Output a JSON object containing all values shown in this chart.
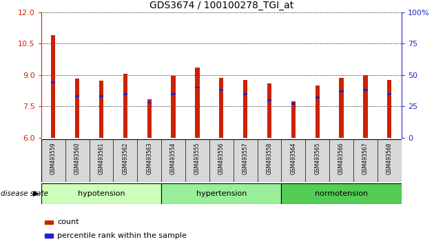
{
  "title": "GDS3674 / 100100278_TGI_at",
  "samples": [
    "GSM493559",
    "GSM493560",
    "GSM493561",
    "GSM493562",
    "GSM493563",
    "GSM493554",
    "GSM493555",
    "GSM493556",
    "GSM493557",
    "GSM493558",
    "GSM493564",
    "GSM493565",
    "GSM493566",
    "GSM493567",
    "GSM493568"
  ],
  "count_values": [
    10.9,
    8.82,
    8.72,
    9.05,
    7.83,
    8.95,
    9.35,
    8.85,
    8.75,
    8.6,
    7.75,
    8.5,
    8.85,
    9.0,
    8.75
  ],
  "percentile_values": [
    44,
    33,
    33,
    35,
    28,
    35,
    40,
    38,
    35,
    30,
    27,
    32,
    37,
    38,
    35
  ],
  "ylim_left": [
    6,
    12
  ],
  "ylim_right": [
    0,
    100
  ],
  "yticks_left": [
    6,
    7.5,
    9,
    10.5,
    12
  ],
  "yticks_right": [
    0,
    25,
    50,
    75,
    100
  ],
  "groups": [
    {
      "label": "hypotension",
      "start": 0,
      "end": 5
    },
    {
      "label": "hypertension",
      "start": 5,
      "end": 10
    },
    {
      "label": "normotension",
      "start": 10,
      "end": 15
    }
  ],
  "group_colors": [
    "#ccffbb",
    "#99ee99",
    "#55cc55"
  ],
  "bar_color_red": "#cc2200",
  "bar_color_blue": "#2222cc",
  "red_bar_width": 0.18,
  "blue_bar_width": 0.18,
  "legend_count_label": "count",
  "legend_percentile_label": "percentile rank within the sample",
  "disease_state_label": "disease state",
  "title_fontsize": 10,
  "axis_label_color_left": "#cc2200",
  "axis_label_color_right": "#2222cc"
}
